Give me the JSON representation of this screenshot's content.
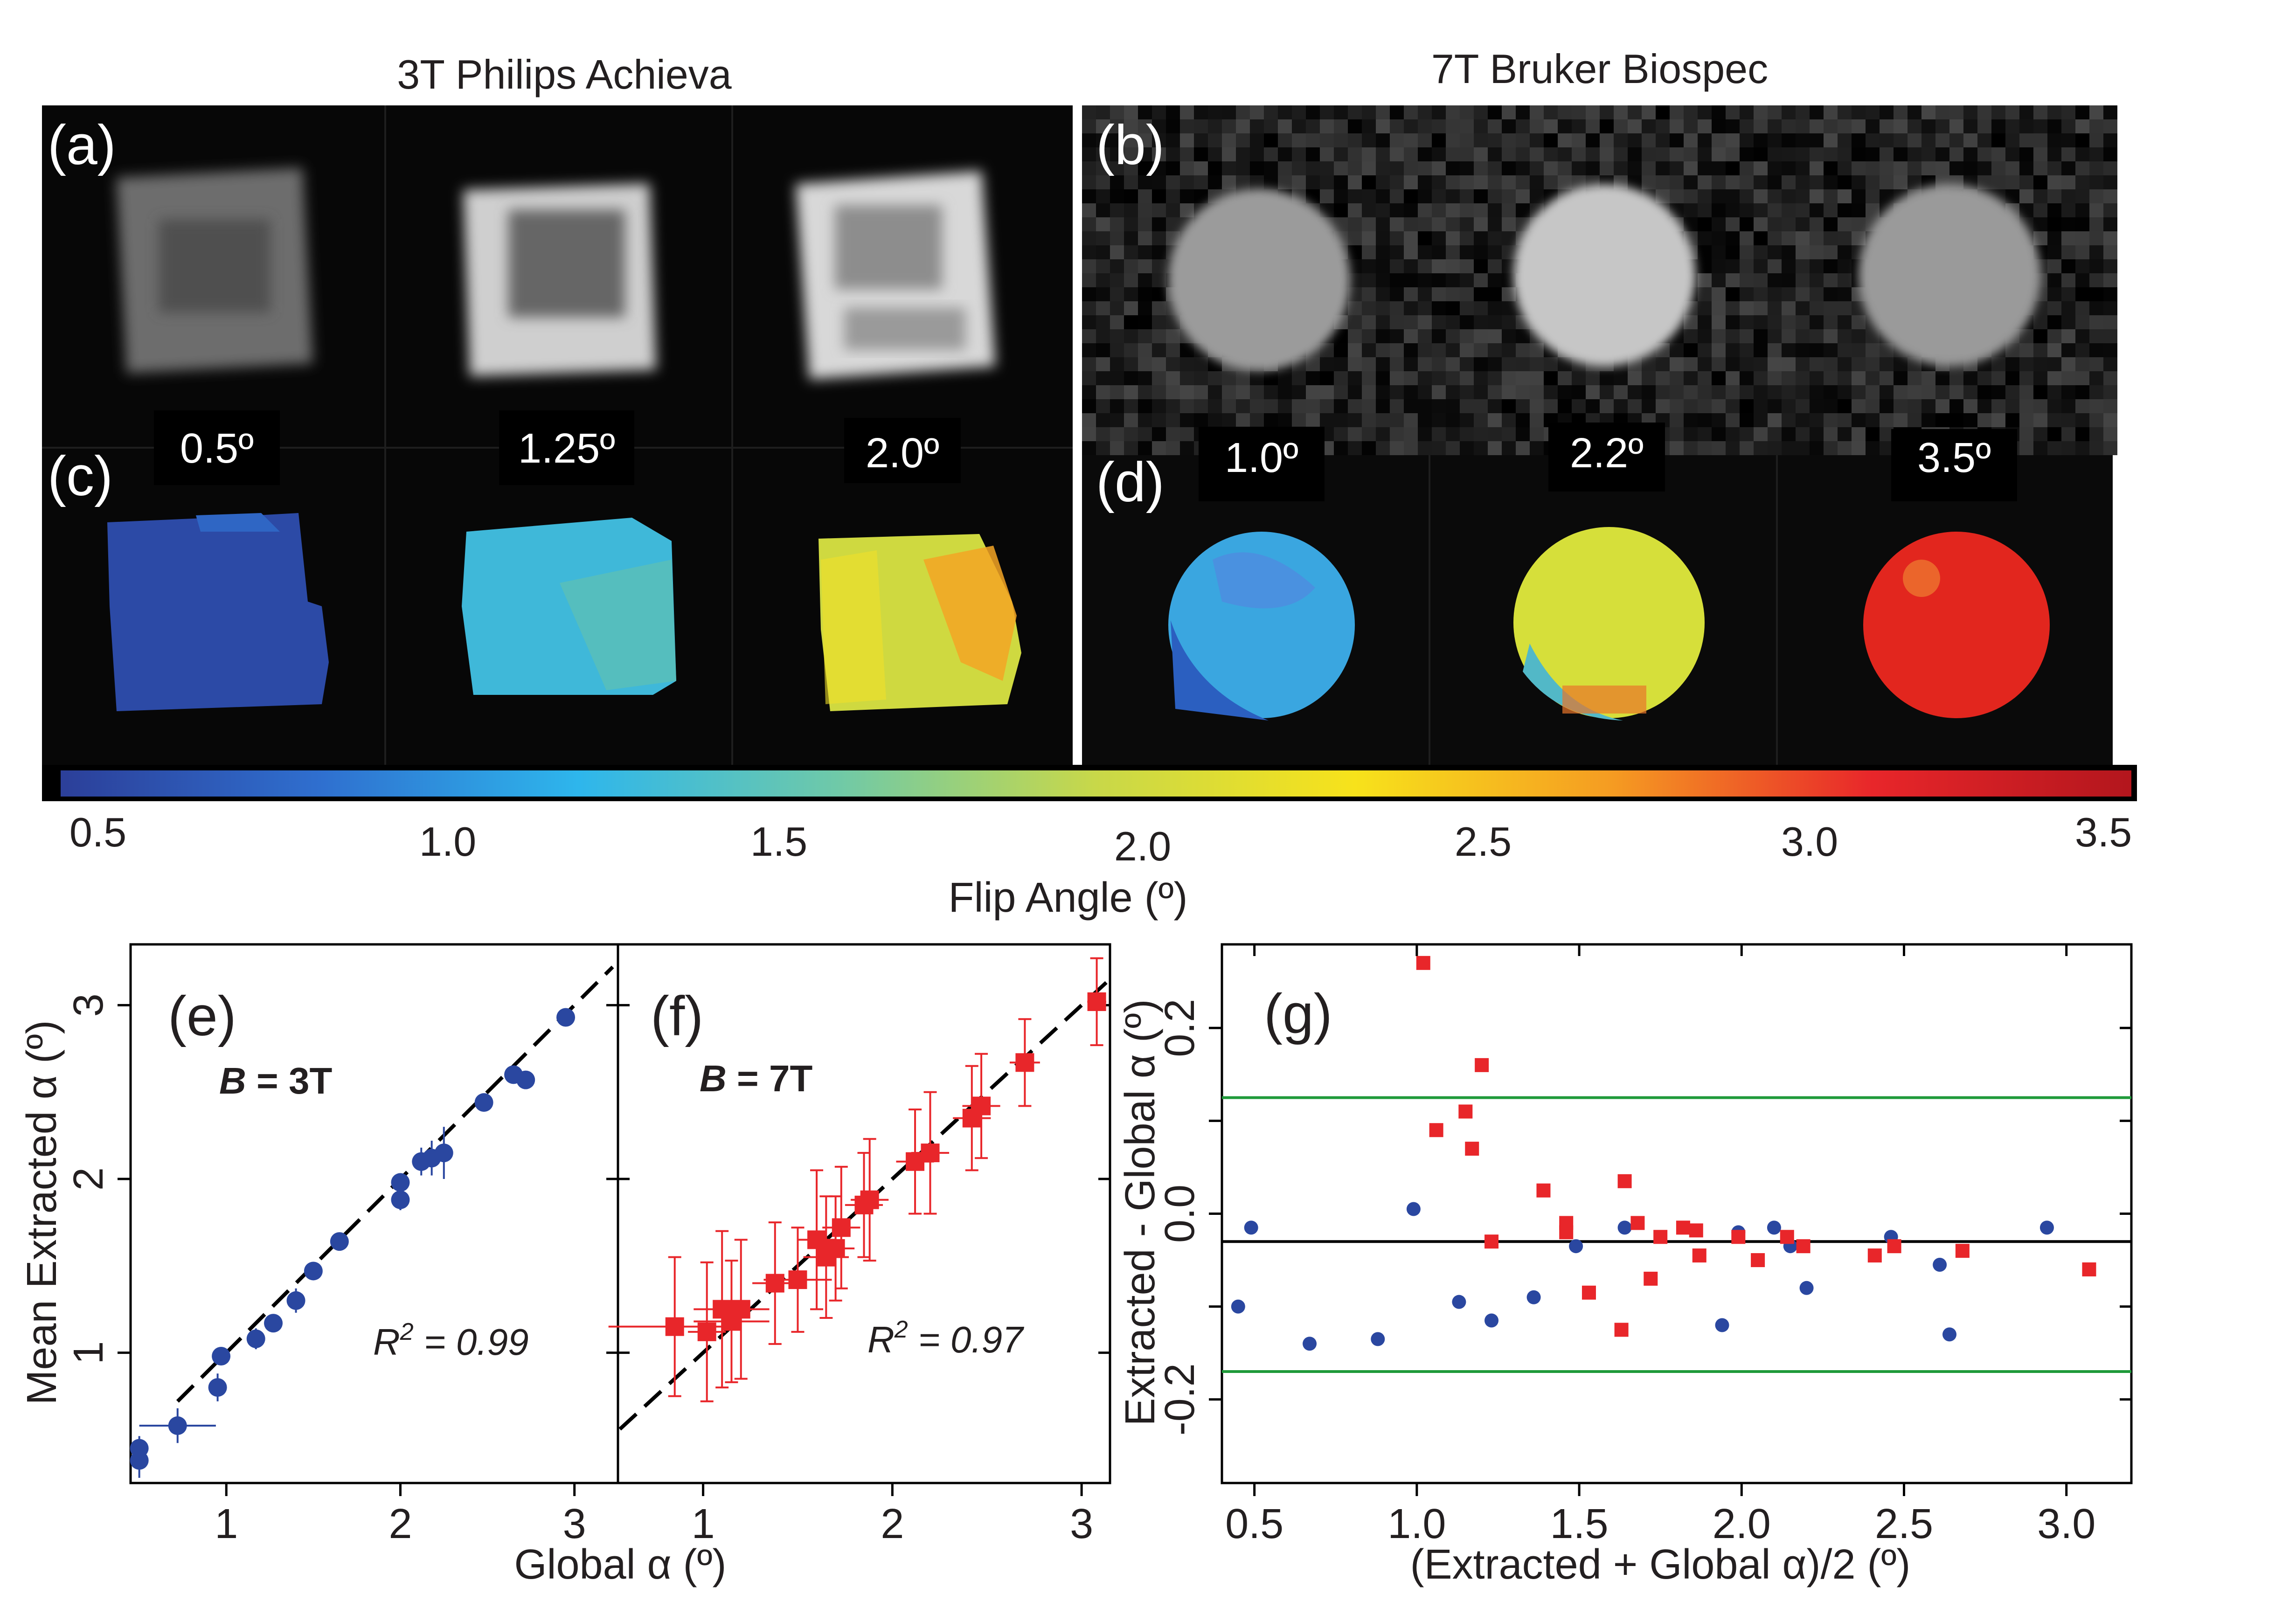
{
  "header": {
    "left_title": "3T Philips Achieva",
    "right_title": "7T Bruker Biospec"
  },
  "panels": {
    "a": "(a)",
    "b": "(b)",
    "c": "(c)",
    "d": "(d)",
    "e": "(e)",
    "f": "(f)",
    "g": "(g)"
  },
  "flip_labels_3t": [
    "0.5º",
    "1.25º",
    "2.0º"
  ],
  "flip_labels_7t": [
    "1.0º",
    "2.2º",
    "3.5º"
  ],
  "colorbar": {
    "title": "Flip Angle (º)",
    "ticks": [
      "0.5",
      "1.0",
      "1.5",
      "2.0",
      "2.5",
      "3.0",
      "3.5"
    ],
    "range": [
      0.5,
      3.5
    ],
    "stops": [
      "#2c3f99",
      "#2f6fcf",
      "#2eb6ec",
      "#6fc9a8",
      "#c8d849",
      "#f7e21b",
      "#f59b22",
      "#e8262a",
      "#b3161d"
    ]
  },
  "colors": {
    "blue": "#2a47a0",
    "red": "#e8262a",
    "green": "#1f9a3a",
    "black": "#000000"
  },
  "chart_data": [
    {
      "type": "scatter",
      "panel": "(e)",
      "label_b": "B",
      "label_field": " = 3T",
      "r2_text": "R",
      "r2_exp": "2",
      "r2_value": " = 0.99",
      "ylabel": "Mean Extracted α (º)",
      "xlabel": "Global α (º)",
      "xlim": [
        0.45,
        3.25
      ],
      "ylim": [
        0.25,
        3.35
      ],
      "xticks": [
        "1",
        "2",
        "3"
      ],
      "yticks": [
        "1",
        "2",
        "3"
      ],
      "points": [
        {
          "x": 0.5,
          "y": 0.45,
          "xerr": 0.02,
          "yerr": 0.07
        },
        {
          "x": 0.5,
          "y": 0.38,
          "xerr": 0.02,
          "yerr": 0.1
        },
        {
          "x": 0.72,
          "y": 0.58,
          "xerr": 0.22,
          "yerr": 0.1
        },
        {
          "x": 0.95,
          "y": 0.8,
          "xerr": 0.03,
          "yerr": 0.08
        },
        {
          "x": 0.97,
          "y": 0.98,
          "xerr": 0.03,
          "yerr": 0.05
        },
        {
          "x": 1.17,
          "y": 1.08,
          "xerr": 0.03,
          "yerr": 0.06
        },
        {
          "x": 1.27,
          "y": 1.17,
          "xerr": 0.04,
          "yerr": 0.05
        },
        {
          "x": 1.4,
          "y": 1.3,
          "xerr": 0.04,
          "yerr": 0.07
        },
        {
          "x": 1.5,
          "y": 1.47,
          "xerr": 0.03,
          "yerr": 0.04
        },
        {
          "x": 1.65,
          "y": 1.64,
          "xerr": 0.03,
          "yerr": 0.03
        },
        {
          "x": 2.0,
          "y": 1.88,
          "xerr": 0.02,
          "yerr": 0.06
        },
        {
          "x": 2.0,
          "y": 1.98,
          "xerr": 0.02,
          "yerr": 0.04
        },
        {
          "x": 2.12,
          "y": 2.1,
          "xerr": 0.04,
          "yerr": 0.08
        },
        {
          "x": 2.18,
          "y": 2.12,
          "xerr": 0.04,
          "yerr": 0.1
        },
        {
          "x": 2.25,
          "y": 2.15,
          "xerr": 0.05,
          "yerr": 0.15
        },
        {
          "x": 2.48,
          "y": 2.44,
          "xerr": 0.03,
          "yerr": 0.03
        },
        {
          "x": 2.65,
          "y": 2.6,
          "xerr": 0.05,
          "yerr": 0.05
        },
        {
          "x": 2.72,
          "y": 2.57,
          "xerr": 0.04,
          "yerr": 0.04
        },
        {
          "x": 2.95,
          "y": 2.93,
          "xerr": 0.03,
          "yerr": 0.03
        }
      ]
    },
    {
      "type": "scatter",
      "panel": "(f)",
      "label_b": "B",
      "label_field": " = 7T",
      "r2_text": "R",
      "r2_exp": "2",
      "r2_value": " = 0.97",
      "xlim": [
        0.55,
        3.15
      ],
      "ylim": [
        0.25,
        3.35
      ],
      "xticks": [
        "1",
        "2",
        "3"
      ],
      "points": [
        {
          "x": 0.85,
          "y": 1.15,
          "xerr": 0.35,
          "yerr": 0.4
        },
        {
          "x": 1.02,
          "y": 1.12,
          "xerr": 0.1,
          "yerr": 0.4
        },
        {
          "x": 1.1,
          "y": 1.25,
          "xerr": 0.15,
          "yerr": 0.45
        },
        {
          "x": 1.15,
          "y": 1.18,
          "xerr": 0.2,
          "yerr": 0.35
        },
        {
          "x": 1.2,
          "y": 1.25,
          "xerr": 0.15,
          "yerr": 0.4
        },
        {
          "x": 1.38,
          "y": 1.4,
          "xerr": 0.12,
          "yerr": 0.35
        },
        {
          "x": 1.5,
          "y": 1.42,
          "xerr": 0.18,
          "yerr": 0.3
        },
        {
          "x": 1.6,
          "y": 1.65,
          "xerr": 0.1,
          "yerr": 0.4
        },
        {
          "x": 1.65,
          "y": 1.55,
          "xerr": 0.12,
          "yerr": 0.35
        },
        {
          "x": 1.7,
          "y": 1.6,
          "xerr": 0.1,
          "yerr": 0.3
        },
        {
          "x": 1.73,
          "y": 1.72,
          "xerr": 0.1,
          "yerr": 0.35
        },
        {
          "x": 1.85,
          "y": 1.85,
          "xerr": 0.1,
          "yerr": 0.3
        },
        {
          "x": 1.88,
          "y": 1.88,
          "xerr": 0.1,
          "yerr": 0.35
        },
        {
          "x": 2.12,
          "y": 2.1,
          "xerr": 0.1,
          "yerr": 0.3
        },
        {
          "x": 2.2,
          "y": 2.15,
          "xerr": 0.1,
          "yerr": 0.35
        },
        {
          "x": 2.42,
          "y": 2.35,
          "xerr": 0.1,
          "yerr": 0.3
        },
        {
          "x": 2.47,
          "y": 2.42,
          "xerr": 0.1,
          "yerr": 0.3
        },
        {
          "x": 2.7,
          "y": 2.67,
          "xerr": 0.08,
          "yerr": 0.25
        },
        {
          "x": 3.08,
          "y": 3.02,
          "xerr": 0.05,
          "yerr": 0.25
        }
      ]
    },
    {
      "type": "scatter",
      "panel": "(g)",
      "ylabel": "Extracted - Global α (º)",
      "xlabel": "(Extracted + Global α)/2 (º)",
      "xlim": [
        0.4,
        3.2
      ],
      "ylim": [
        -0.29,
        0.29
      ],
      "xticks": [
        "0.5",
        "1.0",
        "1.5",
        "2.0",
        "2.5",
        "3.0"
      ],
      "yticks": [
        "-0.2",
        "0.0",
        "0.2"
      ],
      "mean_line": -0.03,
      "limit_lines": [
        0.125,
        -0.17
      ],
      "series": [
        {
          "name": "3T",
          "color": "blue",
          "points": [
            {
              "x": 0.45,
              "y": -0.1
            },
            {
              "x": 0.49,
              "y": -0.015
            },
            {
              "x": 0.67,
              "y": -0.14
            },
            {
              "x": 0.88,
              "y": -0.135
            },
            {
              "x": 0.99,
              "y": 0.005
            },
            {
              "x": 1.13,
              "y": -0.095
            },
            {
              "x": 1.23,
              "y": -0.115
            },
            {
              "x": 1.36,
              "y": -0.09
            },
            {
              "x": 1.49,
              "y": -0.035
            },
            {
              "x": 1.64,
              "y": -0.015
            },
            {
              "x": 1.94,
              "y": -0.12
            },
            {
              "x": 1.99,
              "y": -0.02
            },
            {
              "x": 2.1,
              "y": -0.015
            },
            {
              "x": 2.15,
              "y": -0.035
            },
            {
              "x": 2.2,
              "y": -0.08
            },
            {
              "x": 2.46,
              "y": -0.025
            },
            {
              "x": 2.61,
              "y": -0.055
            },
            {
              "x": 2.64,
              "y": -0.13
            },
            {
              "x": 2.94,
              "y": -0.015
            }
          ]
        },
        {
          "name": "7T",
          "color": "red",
          "points": [
            {
              "x": 1.02,
              "y": 0.27
            },
            {
              "x": 1.06,
              "y": 0.09
            },
            {
              "x": 1.15,
              "y": 0.11
            },
            {
              "x": 1.17,
              "y": 0.07
            },
            {
              "x": 1.2,
              "y": 0.16
            },
            {
              "x": 1.23,
              "y": -0.03
            },
            {
              "x": 1.39,
              "y": 0.025
            },
            {
              "x": 1.46,
              "y": -0.01
            },
            {
              "x": 1.46,
              "y": -0.02
            },
            {
              "x": 1.53,
              "y": -0.085
            },
            {
              "x": 1.63,
              "y": -0.125
            },
            {
              "x": 1.64,
              "y": 0.035
            },
            {
              "x": 1.68,
              "y": -0.01
            },
            {
              "x": 1.72,
              "y": -0.07
            },
            {
              "x": 1.75,
              "y": -0.025
            },
            {
              "x": 1.82,
              "y": -0.015
            },
            {
              "x": 1.86,
              "y": -0.018
            },
            {
              "x": 1.87,
              "y": -0.045
            },
            {
              "x": 1.99,
              "y": -0.025
            },
            {
              "x": 2.05,
              "y": -0.05
            },
            {
              "x": 2.14,
              "y": -0.025
            },
            {
              "x": 2.19,
              "y": -0.035
            },
            {
              "x": 2.41,
              "y": -0.045
            },
            {
              "x": 2.47,
              "y": -0.035
            },
            {
              "x": 2.68,
              "y": -0.04
            },
            {
              "x": 3.07,
              "y": -0.06
            }
          ]
        }
      ]
    }
  ]
}
